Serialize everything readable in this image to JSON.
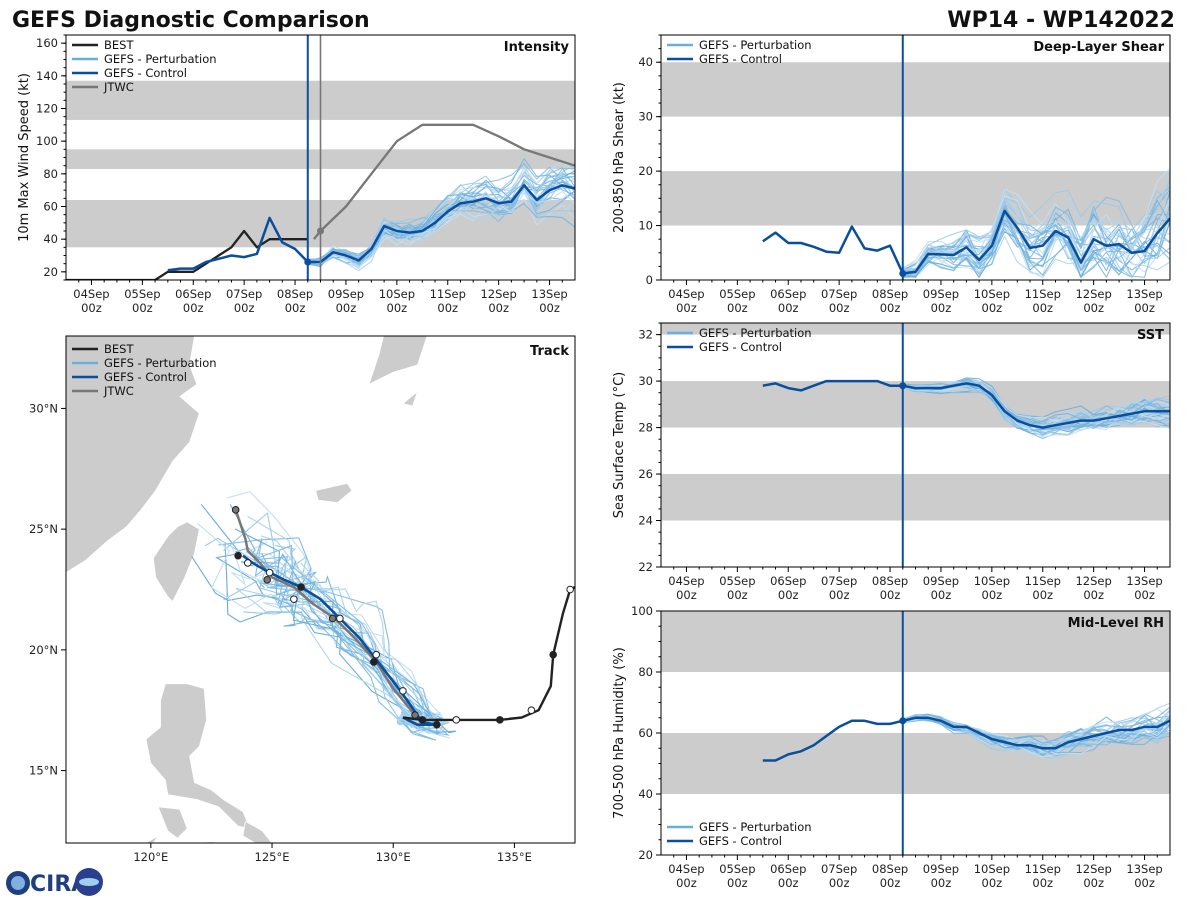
{
  "header": {
    "title": "GEFS Diagnostic Comparison",
    "storm_id": "WP14 - WP142022"
  },
  "logo": {
    "text": "CIRA"
  },
  "colors": {
    "best": "#222222",
    "pert": "#6aaedb",
    "control": "#0b4f9c",
    "jtwc": "#777777",
    "band": "#cccccc",
    "land": "#cccccc"
  },
  "legend_labels": {
    "best": "BEST",
    "pert": "GEFS - Perturbation",
    "control": "GEFS - Control",
    "jtwc": "JTWC"
  },
  "time_ticks": [
    {
      "d": 0,
      "l1": "04Sep",
      "l2": "00z"
    },
    {
      "d": 1,
      "l1": "05Sep",
      "l2": "00z"
    },
    {
      "d": 2,
      "l1": "06Sep",
      "l2": "00z"
    },
    {
      "d": 3,
      "l1": "07Sep",
      "l2": "00z"
    },
    {
      "d": 4,
      "l1": "08Sep",
      "l2": "00z"
    },
    {
      "d": 5,
      "l1": "09Sep",
      "l2": "00z"
    },
    {
      "d": 6,
      "l1": "10Sep",
      "l2": "00z"
    },
    {
      "d": 7,
      "l1": "11Sep",
      "l2": "00z"
    },
    {
      "d": 8,
      "l1": "12Sep",
      "l2": "00z"
    },
    {
      "d": 9,
      "l1": "13Sep",
      "l2": "00z"
    }
  ],
  "chart_data": [
    {
      "id": "intensity",
      "type": "line",
      "title": "Intensity",
      "ylabel": "10m Max Wind Speed (kt)",
      "xlim": [
        -0.5,
        9.5
      ],
      "ylim": [
        15,
        165
      ],
      "yticks": [
        20,
        40,
        60,
        80,
        100,
        120,
        140,
        160
      ],
      "bands": [
        [
          35,
          64
        ],
        [
          83,
          95
        ],
        [
          113,
          137
        ]
      ],
      "init_time": 4.25,
      "jtwc_time": 4.5,
      "best": {
        "x": [
          -0.5,
          -0.25,
          0,
          0.25,
          0.5,
          0.75,
          1.0,
          1.25,
          1.5,
          1.75,
          2.0,
          2.25,
          2.5,
          2.75,
          3.0,
          3.25,
          3.5,
          3.75,
          4.0,
          4.25
        ],
        "y": [
          15,
          15,
          15,
          15,
          15,
          15,
          15,
          15,
          20,
          20,
          20,
          25,
          30,
          35,
          45,
          35,
          40,
          40,
          40,
          40
        ]
      },
      "jtwc": {
        "x": [
          4.37,
          4.5,
          5.0,
          5.5,
          6.0,
          6.5,
          7.0,
          7.5,
          8.0,
          8.5,
          9.0,
          9.5
        ],
        "y": [
          40,
          45,
          60,
          80,
          100,
          110,
          110,
          110,
          103,
          95,
          90,
          85
        ]
      },
      "control": {
        "x": [
          1.5,
          1.75,
          2.0,
          2.25,
          2.5,
          2.75,
          3.0,
          3.25,
          3.5,
          3.75,
          4.0,
          4.25,
          4.5,
          4.75,
          5.0,
          5.25,
          5.5,
          5.75,
          6.0,
          6.25,
          6.5,
          6.75,
          7.0,
          7.25,
          7.5,
          7.75,
          8.0,
          8.25,
          8.5,
          8.75,
          9.0,
          9.25,
          9.5
        ],
        "y": [
          21,
          22,
          22,
          26,
          28,
          30,
          29,
          31,
          53,
          38,
          34,
          26,
          26,
          32,
          30,
          27,
          34,
          48,
          45,
          44,
          45,
          50,
          57,
          62,
          63,
          65,
          62,
          63,
          73,
          64,
          70,
          73,
          71
        ]
      },
      "pert_start": 4.25,
      "pert_step": 0.25,
      "pert_count": 30
    },
    {
      "id": "shear",
      "type": "line",
      "title": "Deep-Layer Shear",
      "ylabel": "200-850 hPa Shear (kt)",
      "xlim": [
        -0.5,
        9.5
      ],
      "ylim": [
        0,
        45
      ],
      "yticks": [
        0,
        10,
        20,
        30,
        40
      ],
      "bands": [
        [
          10,
          20
        ],
        [
          30,
          40
        ]
      ],
      "init_time": 4.25,
      "control": {
        "x": [
          1.5,
          1.75,
          2.0,
          2.25,
          2.5,
          2.75,
          3.0,
          3.25,
          3.5,
          3.75,
          4.0,
          4.25,
          4.5,
          4.75,
          5.0,
          5.25,
          5.5,
          5.75,
          6.0,
          6.25,
          6.5,
          6.75,
          7.0,
          7.25,
          7.5,
          7.75,
          8.0,
          8.25,
          8.5,
          8.75,
          9.0,
          9.25,
          9.5
        ],
        "y": [
          7.1,
          8.7,
          6.8,
          6.8,
          6.1,
          5.2,
          5.0,
          9.8,
          5.8,
          5.4,
          6.3,
          1.2,
          1.5,
          4.8,
          4.7,
          4.6,
          6.0,
          3.7,
          6.3,
          12.7,
          9.6,
          5.9,
          6.3,
          9.0,
          7.8,
          3.2,
          7.5,
          6.3,
          6.6,
          5.0,
          5.3,
          8.6,
          11.3
        ]
      },
      "pert_start": 4.25,
      "pert_step": 0.25,
      "pert_count": 30
    },
    {
      "id": "track",
      "type": "scatter",
      "title": "Track",
      "lon_range": [
        116.5,
        137.5
      ],
      "lat_range": [
        12.0,
        33.0
      ],
      "lon_ticks": [
        {
          "v": 120,
          "l": "120°E"
        },
        {
          "v": 125,
          "l": "125°E"
        },
        {
          "v": 130,
          "l": "130°E"
        },
        {
          "v": 135,
          "l": "135°E"
        }
      ],
      "lat_ticks": [
        {
          "v": 15,
          "l": "15°N"
        },
        {
          "v": 20,
          "l": "20°N"
        },
        {
          "v": 25,
          "l": "25°N"
        },
        {
          "v": 30,
          "l": "30°N"
        }
      ],
      "best": {
        "lon": [
          137.5,
          137.3,
          137.0,
          136.6,
          136.5,
          136.0,
          135.3,
          134.4,
          133.6,
          132.7,
          131.8,
          131.2,
          130.4
        ],
        "lat": [
          22.6,
          22.5,
          21.5,
          19.8,
          18.5,
          17.5,
          17.2,
          17.1,
          17.1,
          17.1,
          17.1,
          17.1,
          17.2
        ]
      },
      "best_points": {
        "lon": [
          137.3,
          136.6,
          135.7,
          134.4,
          132.6,
          131.2
        ],
        "lat": [
          22.5,
          19.8,
          17.5,
          17.1,
          17.1,
          17.1
        ],
        "open": [
          true,
          false,
          true,
          false,
          true,
          false
        ]
      },
      "control": {
        "lon": [
          130.4,
          131.0,
          131.8,
          131.2,
          130.3,
          129.3,
          128.6,
          127.8,
          127.0,
          126.2,
          125.5,
          124.9,
          124.2,
          123.8
        ],
        "lat": [
          17.2,
          16.9,
          16.9,
          17.0,
          18.3,
          19.6,
          20.5,
          21.3,
          22.1,
          22.6,
          22.9,
          23.2,
          23.6,
          23.9
        ]
      },
      "control_points": {
        "lon": [
          131.8,
          130.4,
          129.2,
          127.8,
          126.2,
          124.9,
          123.6
        ],
        "lat": [
          16.9,
          18.3,
          19.5,
          21.3,
          22.6,
          23.2,
          23.9
        ]
      },
      "jtwc": {
        "lon": [
          130.9,
          130.0,
          129.3,
          128.5,
          127.6,
          126.7,
          125.9,
          125.0,
          124.5,
          124.0,
          123.9,
          123.5
        ],
        "lat": [
          17.3,
          18.4,
          19.5,
          20.4,
          21.3,
          21.9,
          22.6,
          23.0,
          23.6,
          24.1,
          24.6,
          25.8
        ]
      },
      "jtwc_points": {
        "lon": [
          130.9,
          129.3,
          127.5,
          125.9,
          124.8,
          124.0,
          123.5
        ],
        "lat": [
          17.3,
          19.8,
          21.3,
          22.1,
          22.9,
          23.6,
          25.8
        ]
      }
    },
    {
      "id": "sst",
      "type": "line",
      "title": "SST",
      "ylabel": "Sea Surface Temp (°C)",
      "xlim": [
        -0.5,
        9.5
      ],
      "ylim": [
        22,
        32.5
      ],
      "yticks": [
        22,
        24,
        26,
        28,
        30,
        32
      ],
      "bands": [
        [
          24,
          26
        ],
        [
          28,
          30
        ],
        [
          32,
          32.5
        ]
      ],
      "init_time": 4.25,
      "control": {
        "x": [
          1.5,
          1.75,
          2.0,
          2.25,
          2.5,
          2.75,
          3.0,
          3.25,
          3.5,
          3.75,
          4.0,
          4.25,
          4.5,
          4.75,
          5.0,
          5.25,
          5.5,
          5.75,
          6.0,
          6.25,
          6.5,
          6.75,
          7.0,
          7.25,
          7.5,
          7.75,
          8.0,
          8.25,
          8.5,
          8.75,
          9.0,
          9.25,
          9.5
        ],
        "y": [
          29.8,
          29.9,
          29.7,
          29.6,
          29.8,
          30.0,
          30.0,
          30.0,
          30.0,
          30.0,
          29.8,
          29.8,
          29.7,
          29.7,
          29.7,
          29.8,
          29.9,
          29.8,
          29.4,
          28.7,
          28.3,
          28.1,
          28.0,
          28.1,
          28.2,
          28.3,
          28.3,
          28.4,
          28.5,
          28.6,
          28.7,
          28.7,
          28.7
        ]
      },
      "pert_start": 4.25,
      "pert_step": 0.25,
      "pert_count": 30
    },
    {
      "id": "rh",
      "type": "line",
      "title": "Mid-Level RH",
      "ylabel": "700-500 hPa Humidity (%)",
      "xlim": [
        -0.5,
        9.5
      ],
      "ylim": [
        20,
        100
      ],
      "yticks": [
        20,
        40,
        60,
        80,
        100
      ],
      "bands": [
        [
          40,
          60
        ],
        [
          80,
          100
        ]
      ],
      "init_time": 4.25,
      "control": {
        "x": [
          1.5,
          1.75,
          2.0,
          2.25,
          2.5,
          2.75,
          3.0,
          3.25,
          3.5,
          3.75,
          4.0,
          4.25,
          4.5,
          4.75,
          5.0,
          5.25,
          5.5,
          5.75,
          6.0,
          6.25,
          6.5,
          6.75,
          7.0,
          7.25,
          7.5,
          7.75,
          8.0,
          8.25,
          8.5,
          8.75,
          9.0,
          9.25,
          9.5
        ],
        "y": [
          51,
          51,
          53,
          54,
          56,
          59,
          62,
          64,
          64,
          63,
          63,
          64,
          65,
          65,
          64,
          62,
          62,
          60,
          58,
          57,
          56,
          56,
          55,
          55,
          57,
          58,
          59,
          60,
          61,
          61,
          62,
          62,
          64
        ]
      },
      "pert_start": 4.25,
      "pert_step": 0.25,
      "pert_count": 30
    }
  ]
}
